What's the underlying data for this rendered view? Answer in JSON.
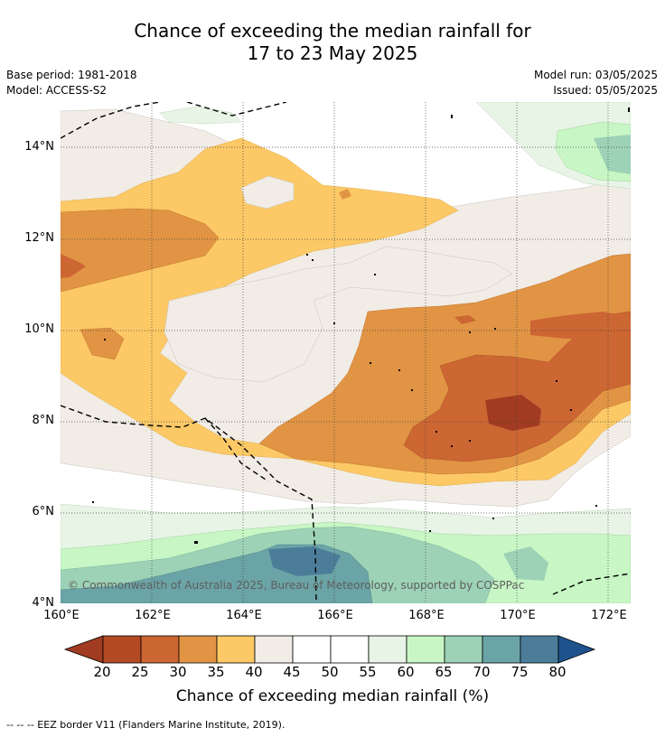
{
  "title_line1": "Chance of exceeding the median rainfall for",
  "title_line2": "17 to 23 May 2025",
  "base_period": "Base period: 1981-2018",
  "model": "Model: ACCESS-S2",
  "model_run": "Model run: 03/05/2025",
  "issued": "Issued: 05/05/2025",
  "copyright": "© Commonwealth of Australia 2025, Bureau of Meteorology, supported by COSPPac",
  "colorbar_title": "Chance of exceeding median rainfall (%)",
  "footnote": "--  --  -- EEZ border V11 (Flanders Marine Institute, 2019).",
  "lat_labels": [
    "14°N",
    "12°N",
    "10°N",
    "8°N",
    "6°N",
    "4°N"
  ],
  "lon_labels": [
    "160°E",
    "162°E",
    "164°E",
    "166°E",
    "168°E",
    "170°E",
    "172°E"
  ],
  "colorbar_ticks": [
    "20",
    "25",
    "30",
    "35",
    "40",
    "45",
    "50",
    "55",
    "60",
    "65",
    "70",
    "75",
    "80"
  ],
  "colorbar_colors": [
    "#a13b22",
    "#b34a24",
    "#cc6633",
    "#e19444",
    "#fcc966",
    "#f1ece6",
    "#ffffff",
    "#ffffff",
    "#e8f4e6",
    "#c8f7c5",
    "#9dd2b6",
    "#6ba4a6",
    "#4b7d99",
    "#1e528c"
  ]
}
